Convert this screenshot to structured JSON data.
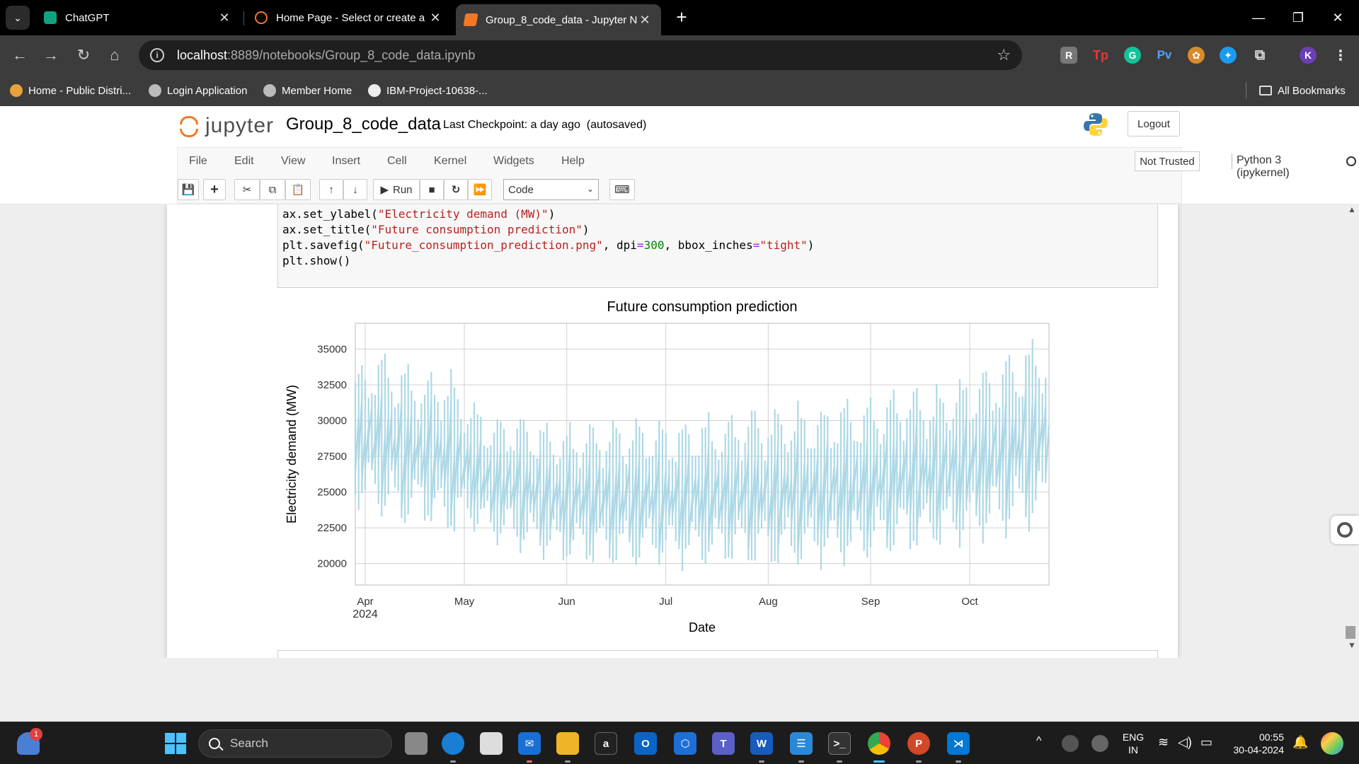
{
  "browser": {
    "tabs": [
      {
        "title": "ChatGPT",
        "color": "#10a37f"
      },
      {
        "title": "Home Page - Select or create a",
        "color": "#f37726"
      },
      {
        "title": "Group_8_code_data - Jupyter N",
        "color": "#f37726",
        "active": true
      }
    ],
    "url_host": "localhost",
    "url_path": ":8889/notebooks/Group_8_code_data.ipynb",
    "bookmarks": [
      "Home - Public Distri...",
      "Login Application",
      "Member Home",
      "IBM-Project-10638-..."
    ],
    "all_bookmarks": "All Bookmarks",
    "profile_initial": "K"
  },
  "jupyter": {
    "logo_text": "jupyter",
    "notebook_name": "Group_8_code_data",
    "checkpoint": "Last Checkpoint: a day ago",
    "autosave": "(autosaved)",
    "logout": "Logout",
    "menu": [
      "File",
      "Edit",
      "View",
      "Insert",
      "Cell",
      "Kernel",
      "Widgets",
      "Help"
    ],
    "trusted": "Not Trusted",
    "kernel": "Python 3 (ipykernel)",
    "run_label": "Run",
    "cell_type": "Code"
  },
  "code": {
    "line1_a": "ax.set_ylabel(",
    "line1_s": "\"Electricity demand (MW)\"",
    "line1_b": ")",
    "line2_a": "ax.set_title(",
    "line2_s": "\"Future consumption prediction\"",
    "line2_b": ")",
    "line3_a": "plt.savefig(",
    "line3_s": "\"Future_consumption_prediction.png\"",
    "line3_b": ", dpi",
    "line3_eq": "=",
    "line3_n": "300",
    "line3_c": ", bbox_inches",
    "line3_eq2": "=",
    "line3_s2": "\"tight\"",
    "line3_d": ")",
    "line4": "plt.show()"
  },
  "chart_data": {
    "type": "line",
    "title": "Future consumption prediction",
    "xlabel": "Date",
    "ylabel": "Electricity demand (MW)",
    "x_ticks": [
      "Apr",
      "May",
      "Jun",
      "Jul",
      "Aug",
      "Sep",
      "Oct"
    ],
    "x_year": "2024",
    "y_ticks": [
      20000,
      22500,
      25000,
      27500,
      30000,
      32500,
      35000
    ],
    "ylim": [
      18500,
      36800
    ],
    "xlim": [
      "2024-03-29",
      "2024-10-25"
    ],
    "grid": true,
    "color": "#add8e6",
    "series": [
      {
        "values": [
          {
            "x": "2024-03-29",
            "min": 24000,
            "max": 33500
          },
          {
            "x": "2024-04-05",
            "min": 23500,
            "max": 35000
          },
          {
            "x": "2024-04-12",
            "min": 22500,
            "max": 34200
          },
          {
            "x": "2024-04-19",
            "min": 23000,
            "max": 33200
          },
          {
            "x": "2024-04-26",
            "min": 21800,
            "max": 33800
          },
          {
            "x": "2024-05-03",
            "min": 22500,
            "max": 31500
          },
          {
            "x": "2024-05-10",
            "min": 21500,
            "max": 30200
          },
          {
            "x": "2024-05-17",
            "min": 21000,
            "max": 30500
          },
          {
            "x": "2024-05-24",
            "min": 20500,
            "max": 30000
          },
          {
            "x": "2024-05-31",
            "min": 20000,
            "max": 29600
          },
          {
            "x": "2024-06-07",
            "min": 20000,
            "max": 29800
          },
          {
            "x": "2024-06-14",
            "min": 19800,
            "max": 30000
          },
          {
            "x": "2024-06-21",
            "min": 19700,
            "max": 30200
          },
          {
            "x": "2024-06-28",
            "min": 20000,
            "max": 30000
          },
          {
            "x": "2024-07-05",
            "min": 19900,
            "max": 29900
          },
          {
            "x": "2024-07-12",
            "min": 19700,
            "max": 30400
          },
          {
            "x": "2024-07-19",
            "min": 20000,
            "max": 30200
          },
          {
            "x": "2024-07-26",
            "min": 19800,
            "max": 31000
          },
          {
            "x": "2024-08-02",
            "min": 19700,
            "max": 30800
          },
          {
            "x": "2024-08-09",
            "min": 19600,
            "max": 31200
          },
          {
            "x": "2024-08-16",
            "min": 20000,
            "max": 30800
          },
          {
            "x": "2024-08-23",
            "min": 19800,
            "max": 31600
          },
          {
            "x": "2024-08-30",
            "min": 20200,
            "max": 31400
          },
          {
            "x": "2024-09-06",
            "min": 20500,
            "max": 32000
          },
          {
            "x": "2024-09-13",
            "min": 20800,
            "max": 32500
          },
          {
            "x": "2024-09-20",
            "min": 21000,
            "max": 32200
          },
          {
            "x": "2024-09-27",
            "min": 21200,
            "max": 32800
          },
          {
            "x": "2024-10-04",
            "min": 21500,
            "max": 33500
          },
          {
            "x": "2024-10-11",
            "min": 21800,
            "max": 34500
          },
          {
            "x": "2024-10-18",
            "min": 22200,
            "max": 35500
          },
          {
            "x": "2024-10-24",
            "min": 22500,
            "max": 36000
          }
        ]
      }
    ]
  },
  "taskbar": {
    "search_placeholder": "Search",
    "notification_count": "1",
    "lang_line1": "ENG",
    "lang_line2": "IN",
    "time": "00:55",
    "date": "30-04-2024"
  }
}
